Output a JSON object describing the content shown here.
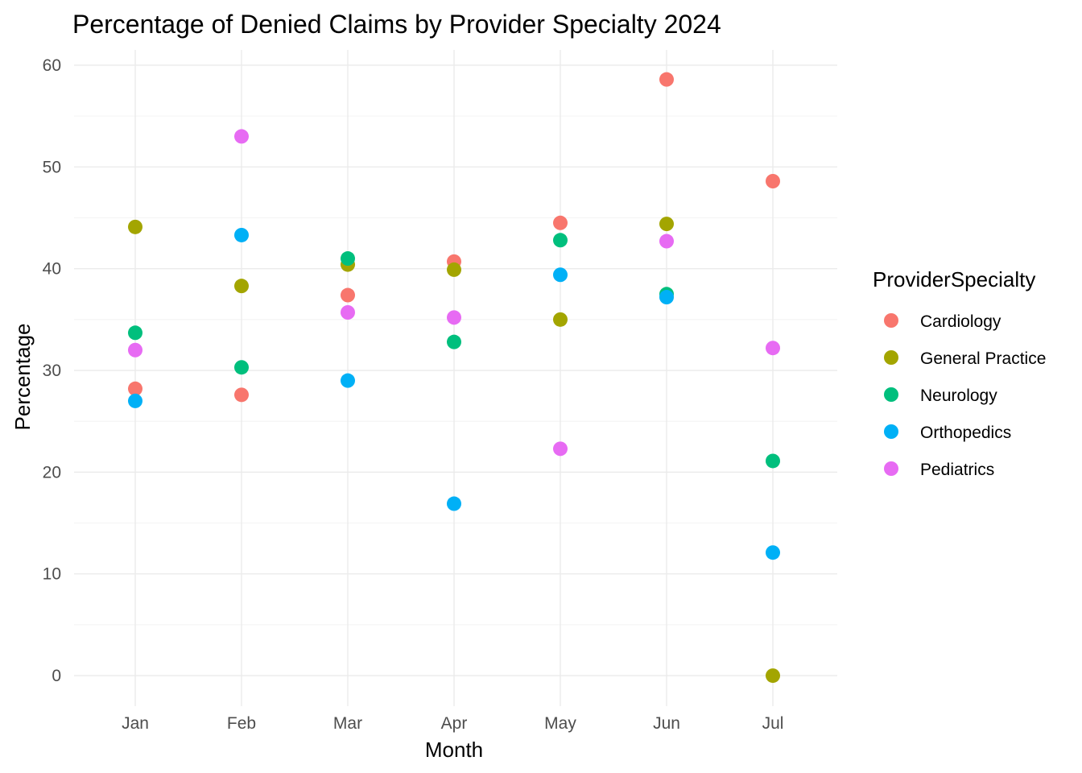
{
  "chart_data": {
    "type": "scatter",
    "title": "Percentage of Denied Claims by Provider Specialty 2024",
    "xlabel": "Month",
    "ylabel": "Percentage",
    "categories": [
      "Jan",
      "Feb",
      "Mar",
      "Apr",
      "May",
      "Jun",
      "Jul"
    ],
    "ylim": [
      -3,
      61.5
    ],
    "yticks": [
      0,
      10,
      20,
      30,
      40,
      50,
      60
    ],
    "grid": true,
    "legend": {
      "title": "ProviderSpecialty",
      "position": "right"
    },
    "series": [
      {
        "name": "Cardiology",
        "color": "#F8766D",
        "values": [
          28.2,
          27.6,
          37.4,
          40.7,
          44.5,
          58.6,
          48.6
        ]
      },
      {
        "name": "General Practice",
        "color": "#A3A500",
        "values": [
          44.1,
          38.3,
          40.4,
          39.9,
          35.0,
          44.4,
          0.0
        ]
      },
      {
        "name": "Neurology",
        "color": "#00BF7D",
        "values": [
          33.7,
          30.3,
          41.0,
          32.8,
          42.8,
          37.5,
          21.1
        ]
      },
      {
        "name": "Orthopedics",
        "color": "#00B0F6",
        "values": [
          27.0,
          43.3,
          29.0,
          16.9,
          39.4,
          37.2,
          12.1
        ]
      },
      {
        "name": "Pediatrics",
        "color": "#E76BF3",
        "values": [
          32.0,
          53.0,
          35.7,
          35.2,
          22.3,
          42.7,
          32.2
        ]
      }
    ]
  }
}
